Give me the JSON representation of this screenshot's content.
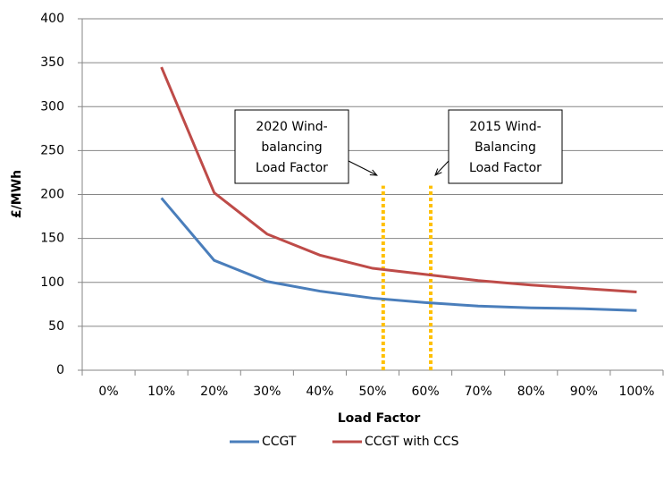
{
  "chart_data": {
    "type": "line",
    "x_label": "Load Factor",
    "y_label": "£/MWh",
    "categories": [
      "0%",
      "10%",
      "20%",
      "30%",
      "40%",
      "50%",
      "60%",
      "70%",
      "80%",
      "90%",
      "100%"
    ],
    "series": [
      {
        "name": "CCGT",
        "color": "#4a7ebb",
        "values": [
          null,
          196,
          125,
          101,
          90,
          82,
          77,
          73,
          71,
          70,
          68
        ]
      },
      {
        "name": "CCGT with CCS",
        "color": "#be4b48",
        "values": [
          null,
          345,
          202,
          155,
          131,
          116,
          109,
          102,
          97,
          93,
          89
        ]
      }
    ],
    "ylim": [
      0,
      400
    ],
    "yticks": [
      0,
      50,
      100,
      150,
      200,
      250,
      300,
      350,
      400
    ],
    "grid": true,
    "legend": "bottom",
    "markers": [
      {
        "lines": [
          "2020 Wind-",
          "balancing",
          "Load Factor"
        ],
        "x": 52,
        "ymax": 210,
        "color": "#ffc000"
      },
      {
        "lines": [
          "2015 Wind-",
          "Balancing",
          "Load Factor"
        ],
        "x": 61,
        "ymax": 210,
        "color": "#ffc000"
      }
    ]
  }
}
